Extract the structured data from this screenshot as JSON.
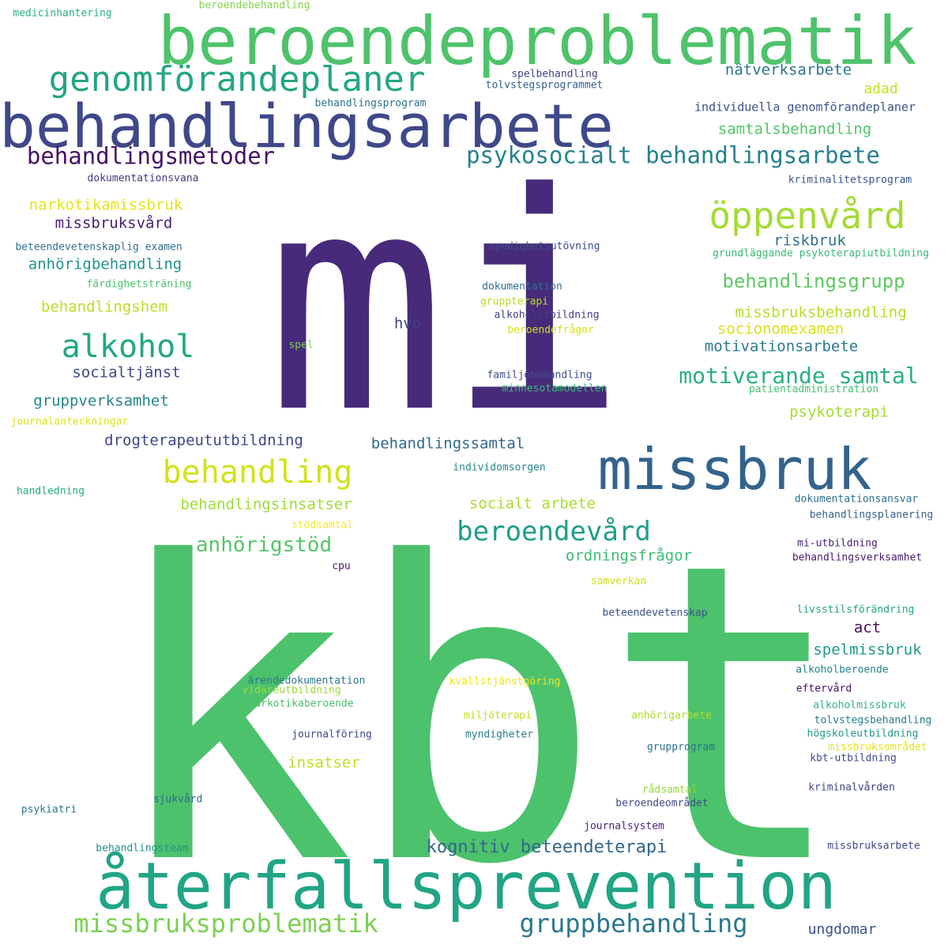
{
  "words": [
    {
      "text": "mi",
      "color": "#472a7a"
    },
    {
      "text": "kbt",
      "color": "#4cc26c"
    },
    {
      "text": "beroendeproblematik",
      "color": "#4ec36b"
    },
    {
      "text": "behandlingsarbete",
      "color": "#3f4889"
    },
    {
      "text": "återfallsprevention",
      "color": "#21a585"
    },
    {
      "text": "missbruk",
      "color": "#33638d"
    },
    {
      "text": "genomförandeplaner",
      "color": "#25a584"
    },
    {
      "text": "behandlingsmetoder",
      "color": "#471164"
    },
    {
      "text": "psykosocialt behandlingsarbete",
      "color": "#26818e"
    },
    {
      "text": "öppenvård",
      "color": "#a5db36"
    },
    {
      "text": "alkohol",
      "color": "#22a884"
    },
    {
      "text": "behandling",
      "color": "#d2e21b"
    },
    {
      "text": "missbruksproblematik",
      "color": "#7ad151"
    },
    {
      "text": "gruppbehandling",
      "color": "#2a788e"
    },
    {
      "text": "beroendevård",
      "color": "#1f9e89"
    },
    {
      "text": "motiverande samtal",
      "color": "#2ab07f"
    },
    {
      "text": "behandlingsgrupp",
      "color": "#5ec962"
    },
    {
      "text": "anhörigstöd",
      "color": "#56c667"
    },
    {
      "text": "kognitiv beteendeterapi",
      "color": "#31668e"
    },
    {
      "text": "nätverksarbete",
      "color": "#2c738e"
    },
    {
      "text": "samtalsbehandling",
      "color": "#54c568"
    },
    {
      "text": "adad",
      "color": "#c8e020"
    },
    {
      "text": "individuella genomförandeplaner",
      "color": "#3b528b"
    },
    {
      "text": "narkotikamissbruk",
      "color": "#e5e419"
    },
    {
      "text": "missbruksvård",
      "color": "#482173"
    },
    {
      "text": "riskbruk",
      "color": "#2d718e"
    },
    {
      "text": "anhörigbehandling",
      "color": "#20938c"
    },
    {
      "text": "behandlingshem",
      "color": "#bddf26"
    },
    {
      "text": "missbruksbehandling",
      "color": "#b5de2b"
    },
    {
      "text": "socionomexamen",
      "color": "#d8e219"
    },
    {
      "text": "motivationsarbete",
      "color": "#297b8e"
    },
    {
      "text": "hvb",
      "color": "#424086"
    },
    {
      "text": "socialtjänst",
      "color": "#3e4989"
    },
    {
      "text": "gruppverksamhet",
      "color": "#24868e"
    },
    {
      "text": "psykoterapi",
      "color": "#a8db34"
    },
    {
      "text": "drogterapeututbildning",
      "color": "#3f4788"
    },
    {
      "text": "behandlingssamtal",
      "color": "#306a8e"
    },
    {
      "text": "behandlingsinsatser",
      "color": "#a0da39"
    },
    {
      "text": "socialt arbete",
      "color": "#addc30"
    },
    {
      "text": "ordningsfrågor",
      "color": "#3dbc74"
    },
    {
      "text": "act",
      "color": "#46085c"
    },
    {
      "text": "spelmissbruk",
      "color": "#1f9a8a"
    },
    {
      "text": "insatser",
      "color": "#c0df25"
    },
    {
      "text": "ungdomar",
      "color": "#3b518b"
    },
    {
      "text": "medicinhantering",
      "color": "#29af7f"
    },
    {
      "text": "beroendebehandling",
      "color": "#84d44b"
    },
    {
      "text": "spelbehandling",
      "color": "#414487"
    },
    {
      "text": "tolvstegsprogrammet",
      "color": "#34608d"
    },
    {
      "text": "behandlingsprogram",
      "color": "#2c728e"
    },
    {
      "text": "dokumentationsvana",
      "color": "#453781"
    },
    {
      "text": "kriminalitetsprogram",
      "color": "#3a548c"
    },
    {
      "text": "beteendevetenskaplig examen",
      "color": "#2e6f8e"
    },
    {
      "text": "myndighetsutövning",
      "color": "#3c508b"
    },
    {
      "text": "grundläggande psykoterapiutbildning",
      "color": "#3aba76"
    },
    {
      "text": "färdighetsträning",
      "color": "#4ac16d"
    },
    {
      "text": "dokumentation",
      "color": "#2d708e"
    },
    {
      "text": "gruppterapi",
      "color": "#b8de29"
    },
    {
      "text": "alkoholutbildning",
      "color": "#424186"
    },
    {
      "text": "beroendefrågor",
      "color": "#d5e21a"
    },
    {
      "text": "spel",
      "color": "#7fd34e"
    },
    {
      "text": "familjebehandling",
      "color": "#3e4c8a"
    },
    {
      "text": "minnesotamodellen",
      "color": "#3bbb75"
    },
    {
      "text": "patientadministration",
      "color": "#44bf70"
    },
    {
      "text": "journalanteckningar",
      "color": "#dde318"
    },
    {
      "text": "individomsorgen",
      "color": "#23898e"
    },
    {
      "text": "handledning",
      "color": "#25ab82"
    },
    {
      "text": "stödsamtal",
      "color": "#fde725"
    },
    {
      "text": "dokumentationsansvar",
      "color": "#2c718e"
    },
    {
      "text": "behandlingsplanering",
      "color": "#355f8d"
    },
    {
      "text": "mi-utbildning",
      "color": "#482475"
    },
    {
      "text": "behandlingsverksamhet",
      "color": "#481c6e"
    },
    {
      "text": "cpu",
      "color": "#48186a"
    },
    {
      "text": "samverkan",
      "color": "#d0e11c"
    },
    {
      "text": "beteendevetenskap",
      "color": "#3b528b"
    },
    {
      "text": "livsstilsförändring",
      "color": "#22a785"
    },
    {
      "text": "alkoholberoende",
      "color": "#25848e"
    },
    {
      "text": "ärendedokumentation",
      "color": "#2a768e"
    },
    {
      "text": "vidareutbildning",
      "color": "#9bd93c"
    },
    {
      "text": "narkotikaberoende",
      "color": "#4ac16d"
    },
    {
      "text": "kvällstjänstgöring",
      "color": "#f1e51d"
    },
    {
      "text": "eftervård",
      "color": "#481467"
    },
    {
      "text": "alkoholmissbruk",
      "color": "#2fb47c"
    },
    {
      "text": "miljöterapi",
      "color": "#c2df23"
    },
    {
      "text": "anhörigarbete",
      "color": "#b0dd2f"
    },
    {
      "text": "tolvstegsbehandling",
      "color": "#287c8e"
    },
    {
      "text": "högskoleutbildning",
      "color": "#1e9b8a"
    },
    {
      "text": "journalföring",
      "color": "#3e4a89"
    },
    {
      "text": "myndigheter",
      "color": "#287d8e"
    },
    {
      "text": "missbruksområdet",
      "color": "#e2e418"
    },
    {
      "text": "grupprogram",
      "color": "#2c738e"
    },
    {
      "text": "kbt-utbildning",
      "color": "#3e4c8a"
    },
    {
      "text": "rådsamtal",
      "color": "#95d840"
    },
    {
      "text": "sjukvård",
      "color": "#31678e"
    },
    {
      "text": "kriminalvården",
      "color": "#404588"
    },
    {
      "text": "psykiatri",
      "color": "#2a778e"
    },
    {
      "text": "beroendeområdet",
      "color": "#3e4a89"
    },
    {
      "text": "journalsystem",
      "color": "#482576"
    },
    {
      "text": "behandlingsteam",
      "color": "#20928c"
    },
    {
      "text": "missbruksarbete",
      "color": "#3f4889"
    }
  ]
}
